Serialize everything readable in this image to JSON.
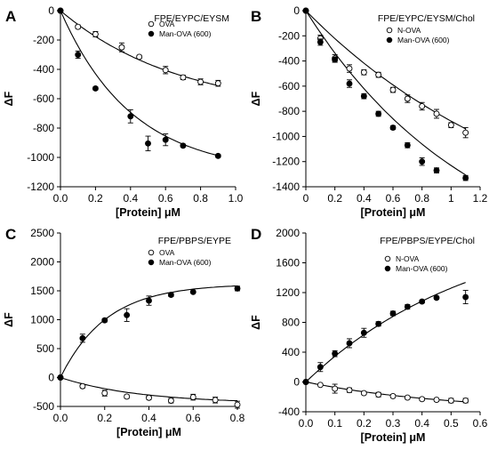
{
  "chart_data": [
    {
      "panel": "A",
      "type": "scatter",
      "title": "FPE/EYPC/EYSM",
      "xlabel": "[Protein] μM",
      "ylabel": "ΔF",
      "xlim": [
        0,
        1
      ],
      "ylim": [
        -1200,
        0
      ],
      "xticks": [
        "0.0",
        "0.2",
        "0.4",
        "0.6",
        "0.8",
        "1.0"
      ],
      "xtick_values": [
        0,
        0.2,
        0.4,
        0.6,
        0.8,
        1.0
      ],
      "yticks": [
        "0",
        "-200",
        "-400",
        "-600",
        "-800",
        "-1000",
        "-1200"
      ],
      "ytick_values": [
        0,
        -200,
        -400,
        -600,
        -800,
        -1000,
        -1200
      ],
      "legend_position": "top-right",
      "series": [
        {
          "name": "OVA",
          "marker": "open",
          "x": [
            0,
            0.1,
            0.2,
            0.35,
            0.45,
            0.6,
            0.7,
            0.8,
            0.9
          ],
          "y": [
            0,
            -110,
            -160,
            -250,
            -315,
            -405,
            -455,
            -485,
            -495
          ],
          "err": [
            0,
            12,
            18,
            30,
            10,
            25,
            15,
            20,
            20
          ],
          "fit": {
            "a": -700,
            "k": 1.45
          }
        },
        {
          "name": "Man-OVA (600)",
          "marker": "filled",
          "x": [
            0,
            0.1,
            0.2,
            0.4,
            0.5,
            0.6,
            0.7,
            0.9
          ],
          "y": [
            0,
            -300,
            -530,
            -720,
            -905,
            -880,
            -920,
            -990
          ],
          "err": [
            0,
            25,
            10,
            45,
            50,
            40,
            10,
            10
          ],
          "fit": {
            "a": -1110,
            "k": 2.45
          }
        }
      ]
    },
    {
      "panel": "B",
      "type": "scatter",
      "title": "FPE/EYPC/EYSM/Chol",
      "xlabel": "[Protein] μM",
      "ylabel": "ΔF",
      "xlim": [
        0,
        1.2
      ],
      "ylim": [
        -1400,
        0
      ],
      "xticks": [
        "0",
        "0.2",
        "0.4",
        "0.6",
        "0.8",
        "1",
        "1.2"
      ],
      "xtick_values": [
        0,
        0.2,
        0.4,
        0.6,
        0.8,
        1.0,
        1.2
      ],
      "yticks": [
        "0",
        "-200",
        "-400",
        "-600",
        "-800",
        "-1000",
        "-1200",
        "-1400"
      ],
      "ytick_values": [
        0,
        -200,
        -400,
        -600,
        -800,
        -1000,
        -1200,
        -1400
      ],
      "legend_position": "top-right",
      "series": [
        {
          "name": "N-OVA",
          "marker": "open",
          "x": [
            0,
            0.1,
            0.2,
            0.3,
            0.4,
            0.5,
            0.6,
            0.7,
            0.8,
            0.9,
            1.0,
            1.1
          ],
          "y": [
            0,
            -220,
            -380,
            -460,
            -490,
            -510,
            -630,
            -700,
            -760,
            -820,
            -910,
            -970
          ],
          "err": [
            0,
            25,
            30,
            30,
            20,
            20,
            20,
            30,
            30,
            35,
            20,
            40
          ],
          "fit": {
            "a": -1900,
            "k": 0.62
          }
        },
        {
          "name": "Man-OVA (600)",
          "marker": "filled",
          "x": [
            0,
            0.1,
            0.2,
            0.3,
            0.4,
            0.5,
            0.6,
            0.7,
            0.8,
            0.9,
            1.1
          ],
          "y": [
            0,
            -250,
            -390,
            -580,
            -680,
            -820,
            -930,
            -1070,
            -1200,
            -1270,
            -1330
          ],
          "err": [
            0,
            25,
            20,
            30,
            20,
            20,
            15,
            20,
            30,
            20,
            20
          ],
          "fit": {
            "a": -2150,
            "k": 0.85
          }
        }
      ]
    },
    {
      "panel": "C",
      "type": "scatter",
      "title": "FPE/PBPS/EYPE",
      "xlabel": "[Protein] μM",
      "ylabel": "ΔF",
      "xlim": [
        0,
        0.8
      ],
      "ylim": [
        -500,
        2500
      ],
      "xticks": [
        "0.0",
        "0.2",
        "0.4",
        "0.6",
        "0.8"
      ],
      "xtick_values": [
        0,
        0.2,
        0.4,
        0.6,
        0.8
      ],
      "yticks": [
        "2500",
        "2000",
        "1500",
        "1000",
        "500",
        "0",
        "-500"
      ],
      "ytick_values": [
        2500,
        2000,
        1500,
        1000,
        500,
        0,
        -500
      ],
      "legend_position": "top-right",
      "series": [
        {
          "name": "OVA",
          "marker": "open",
          "x": [
            0,
            0.1,
            0.2,
            0.3,
            0.4,
            0.5,
            0.6,
            0.7,
            0.8
          ],
          "y": [
            0,
            -150,
            -270,
            -330,
            -350,
            -400,
            -340,
            -390,
            -470
          ],
          "err": [
            0,
            30,
            50,
            30,
            30,
            40,
            50,
            50,
            60
          ],
          "fit": {
            "a": -450,
            "k": 2.8
          }
        },
        {
          "name": "Man-OVA (600)",
          "marker": "filled",
          "x": [
            0,
            0.1,
            0.2,
            0.3,
            0.4,
            0.5,
            0.6,
            0.8
          ],
          "y": [
            0,
            680,
            990,
            1080,
            1330,
            1430,
            1480,
            1540
          ],
          "err": [
            0,
            70,
            30,
            110,
            80,
            30,
            20,
            40
          ],
          "fit": {
            "a": 1620,
            "k": 4.8
          }
        }
      ]
    },
    {
      "panel": "D",
      "type": "scatter",
      "title": "FPE/PBPS/EYPE/Chol",
      "xlabel": "[Protein] μM",
      "ylabel": "ΔF",
      "xlim": [
        0,
        0.6
      ],
      "ylim": [
        -400,
        2000
      ],
      "xticks": [
        "0.0",
        "0.1",
        "0.2",
        "0.3",
        "0.4",
        "0.5",
        "0.6"
      ],
      "xtick_values": [
        0,
        0.1,
        0.2,
        0.3,
        0.4,
        0.5,
        0.6
      ],
      "yticks": [
        "2000",
        "1600",
        "1200",
        "800",
        "400",
        "0",
        "-400"
      ],
      "ytick_values": [
        2000,
        1600,
        1200,
        800,
        400,
        0,
        -400
      ],
      "legend_position": "top-right",
      "series": [
        {
          "name": "N-OVA",
          "marker": "open",
          "x": [
            0,
            0.05,
            0.1,
            0.15,
            0.2,
            0.25,
            0.3,
            0.35,
            0.4,
            0.45,
            0.5,
            0.55
          ],
          "y": [
            0,
            -40,
            -90,
            -110,
            -150,
            -170,
            -190,
            -210,
            -230,
            -240,
            -250,
            -250
          ],
          "err": [
            0,
            10,
            60,
            30,
            20,
            30,
            20,
            20,
            20,
            20,
            30,
            30
          ],
          "fit": {
            "a": -400,
            "k": 2.0
          }
        },
        {
          "name": "Man-OVA (600)",
          "marker": "filled",
          "x": [
            0,
            0.05,
            0.1,
            0.15,
            0.2,
            0.25,
            0.3,
            0.35,
            0.4,
            0.45,
            0.55
          ],
          "y": [
            0,
            200,
            380,
            520,
            660,
            780,
            920,
            1010,
            1080,
            1130,
            1140
          ],
          "err": [
            0,
            60,
            40,
            60,
            60,
            30,
            30,
            30,
            20,
            20,
            90
          ],
          "fit": {
            "a": 2200,
            "k": 1.7
          }
        }
      ]
    }
  ]
}
